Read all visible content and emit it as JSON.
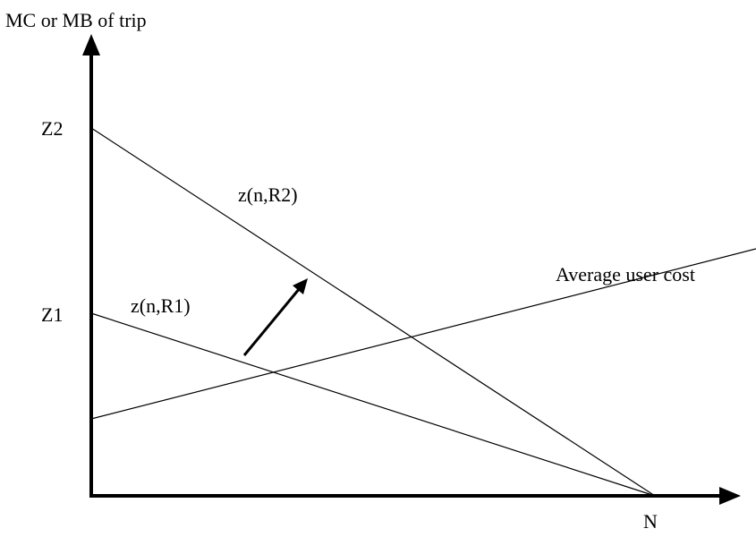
{
  "diagram": {
    "y_axis_label": "MC or MB of trip",
    "x_axis_end_label": "N",
    "intercept_labels": {
      "z2": "Z2",
      "z1": "Z1"
    },
    "curves": {
      "r2": "z(n,R2)",
      "r1": "z(n,R1)",
      "average_user_cost": "Average user cost"
    },
    "colors": {
      "lines": "#000000",
      "background": "#ffffff"
    },
    "shift_arrow": {
      "direction": "up-right",
      "meaning": "shift from z(n,R1) to z(n,R2)"
    }
  }
}
